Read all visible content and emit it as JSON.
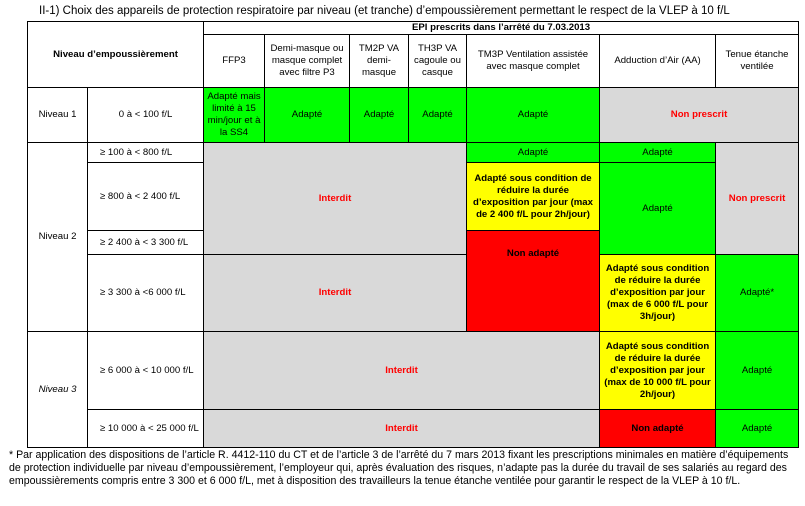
{
  "title": "II-1) Choix des appareils de protection respiratoire par niveau (et tranche) d’empoussièrement permettant le respect de la VLEP à 10 f/L",
  "table": {
    "header_group": "EPI prescrits dans l’arrêté du 7.03.2013",
    "header_level": "Niveau d’empoussièrement",
    "columns": [
      "FFP3",
      "Demi-masque ou masque complet avec filtre P3",
      "TM2P VA demi-masque",
      "TH3P VA cagoule ou casque",
      "TM3P Ventilation assistée avec masque complet",
      "Adduction d’Air (AA)",
      "Tenue étanche ventilée"
    ],
    "levels": [
      "Niveau 1",
      "Niveau 2",
      "Niveau 3"
    ],
    "ranges": [
      "0 à < 100 f/L",
      "≥ 100 à < 800 f/L",
      "≥ 800 à < 2 400 f/L",
      "≥ 2 400 à < 3 300 f/L",
      "≥ 3 300 à <6 000 f/L",
      "≥ 6 000 à < 10 000 f/L",
      "≥ 10 000 à < 25 000 f/L"
    ],
    "cells": {
      "ffp3_n1": "Adapté mais limité à 15 min/jour et à la SS4",
      "adapte": "Adapté",
      "non_prescrit": "Non prescrit",
      "interdit": "Interdit",
      "non_adapte_tm3p": "Non adapté",
      "non_adapte_aa": "Non adapté",
      "tm3p_cond": "Adapté sous condition de réduire la durée d’exposition par jour (max de 2 400 f/L pour 2h/jour)",
      "aa_cond_6000": "Adapté sous condition de réduire la durée d’exposition par jour (max de 6 000 f/L pour 3h/jour)",
      "aa_cond_10000": "Adapté sous condition de réduire la durée d’exposition par jour (max de 10 000 f/L pour 2h/jour)",
      "tenue_star": "Adapté*"
    }
  },
  "footnote": "* Par application des dispositions de l’article R. 4412-110 du CT et de l’article 3 de l’arrêté du 7 mars 2013 fixant les prescriptions minimales en matière d’équipements de protection individuelle par niveau d’empoussièrement, l’employeur qui, après évaluation des risques, n’adapte pas la durée du travail de ses salariés au regard des empoussièrements compris entre 3 300 et 6 000 f/L, met à disposition des travailleurs la tenue étanche ventilée pour garantir le respect de la VLEP à 10 f/L.",
  "colors": {
    "green": "#00ff00",
    "yellow": "#ffff00",
    "red": "#ff0000",
    "gray": "#d9d9d9"
  }
}
